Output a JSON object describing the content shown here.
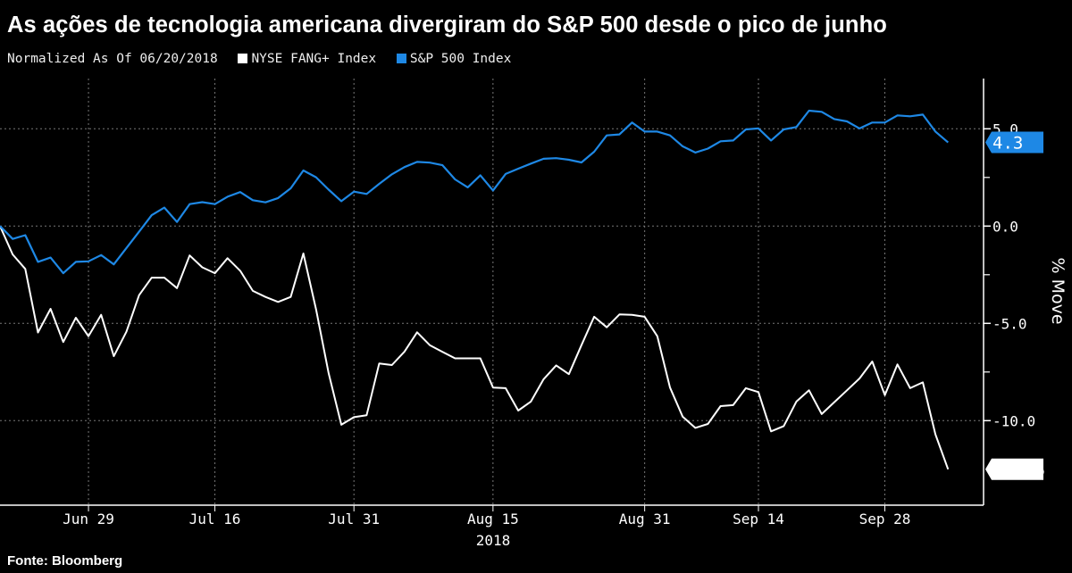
{
  "title": "As ações de tecnologia americana divergiram do S&P 500 desde o pico de junho",
  "source": "Fonte: Bloomberg",
  "chart_data": {
    "type": "line",
    "title": "As ações de tecnologia americana divergiram do S&P 500 desde o pico de junho",
    "subtitle": "Normalized As Of 06/20/2018",
    "ylabel": "% Move",
    "xlabel": "",
    "x_year_label": "2018",
    "ylim": [
      -14.4,
      7.7
    ],
    "y_ticks": [
      5.0,
      0.0,
      -5.0,
      -10.0
    ],
    "y_tick_labels": [
      "5.0",
      "0.0",
      "-5.0",
      "-10.0"
    ],
    "y_minor_ticks": [
      2.5,
      -2.5,
      -7.5
    ],
    "x_ticks": [
      {
        "date": "2018-06-29",
        "label": "Jun 29"
      },
      {
        "date": "2018-07-16",
        "label": "Jul 16"
      },
      {
        "date": "2018-07-31",
        "label": "Jul 31"
      },
      {
        "date": "2018-08-15",
        "label": "Aug 15"
      },
      {
        "date": "2018-08-31",
        "label": "Aug 31"
      },
      {
        "date": "2018-09-14",
        "label": "Sep 14"
      },
      {
        "date": "2018-09-28",
        "label": "Sep 28"
      }
    ],
    "grid": true,
    "legend_position": "top-left",
    "x": [
      "2018-06-20",
      "2018-06-21",
      "2018-06-22",
      "2018-06-25",
      "2018-06-26",
      "2018-06-27",
      "2018-06-28",
      "2018-06-29",
      "2018-07-02",
      "2018-07-03",
      "2018-07-05",
      "2018-07-06",
      "2018-07-09",
      "2018-07-10",
      "2018-07-11",
      "2018-07-12",
      "2018-07-13",
      "2018-07-16",
      "2018-07-17",
      "2018-07-18",
      "2018-07-19",
      "2018-07-20",
      "2018-07-23",
      "2018-07-24",
      "2018-07-25",
      "2018-07-26",
      "2018-07-27",
      "2018-07-30",
      "2018-07-31",
      "2018-08-01",
      "2018-08-02",
      "2018-08-03",
      "2018-08-06",
      "2018-08-07",
      "2018-08-08",
      "2018-08-09",
      "2018-08-10",
      "2018-08-13",
      "2018-08-14",
      "2018-08-15",
      "2018-08-16",
      "2018-08-17",
      "2018-08-20",
      "2018-08-21",
      "2018-08-22",
      "2018-08-23",
      "2018-08-24",
      "2018-08-27",
      "2018-08-28",
      "2018-08-29",
      "2018-08-30",
      "2018-08-31",
      "2018-09-04",
      "2018-09-05",
      "2018-09-06",
      "2018-09-07",
      "2018-09-10",
      "2018-09-11",
      "2018-09-12",
      "2018-09-13",
      "2018-09-14",
      "2018-09-17",
      "2018-09-18",
      "2018-09-19",
      "2018-09-20",
      "2018-09-21",
      "2018-09-24",
      "2018-09-25",
      "2018-09-26",
      "2018-09-27",
      "2018-09-28",
      "2018-10-01",
      "2018-10-02",
      "2018-10-03",
      "2018-10-04",
      "2018-10-05"
    ],
    "series": [
      {
        "name": "NYSE FANG+ Index",
        "color": "#ffffff",
        "last_value_label": "-12.5",
        "values": [
          0,
          -1.46,
          -2.2,
          -5.47,
          -4.25,
          -5.96,
          -4.71,
          -5.66,
          -4.56,
          -6.69,
          -5.43,
          -3.55,
          -2.65,
          -2.65,
          -3.19,
          -1.51,
          -2.12,
          -2.42,
          -1.65,
          -2.3,
          -3.33,
          -3.64,
          -3.9,
          -3.64,
          -1.41,
          -4.28,
          -7.57,
          -10.21,
          -9.82,
          -9.72,
          -7.06,
          -7.14,
          -6.45,
          -5.46,
          -6.12,
          -6.47,
          -6.8,
          -6.8,
          -6.8,
          -8.3,
          -8.33,
          -9.48,
          -9.02,
          -7.87,
          -7.16,
          -7.61,
          -6.12,
          -4.66,
          -5.2,
          -4.54,
          -4.56,
          -4.66,
          -5.66,
          -8.3,
          -9.79,
          -10.37,
          -10.17,
          -9.25,
          -9.2,
          -8.33,
          -8.53,
          -10.55,
          -10.28,
          -9.02,
          -8.44,
          -9.66,
          -9.05,
          -8.44,
          -7.83,
          -6.96,
          -8.69,
          -7.11,
          -8.33,
          -8.03,
          -10.7,
          -12.5
        ]
      },
      {
        "name": "S&P 500 Index",
        "color": "#1e88e5",
        "last_value_label": "4.3",
        "values": [
          0,
          -0.66,
          -0.47,
          -1.84,
          -1.62,
          -2.42,
          -1.84,
          -1.81,
          -1.49,
          -1.97,
          -1.13,
          -0.29,
          0.56,
          0.95,
          0.21,
          1.13,
          1.23,
          1.13,
          1.51,
          1.75,
          1.33,
          1.22,
          1.44,
          1.94,
          2.86,
          2.51,
          1.87,
          1.28,
          1.77,
          1.65,
          2.17,
          2.66,
          3.03,
          3.3,
          3.26,
          3.13,
          2.4,
          1.99,
          2.61,
          1.83,
          2.68,
          2.95,
          3.21,
          3.46,
          3.49,
          3.41,
          3.27,
          3.82,
          4.66,
          4.71,
          5.32,
          4.86,
          4.86,
          4.66,
          4.1,
          3.78,
          3.98,
          4.36,
          4.4,
          4.97,
          5.02,
          4.4,
          4.97,
          5.09,
          5.93,
          5.87,
          5.5,
          5.38,
          5.02,
          5.32,
          5.32,
          5.69,
          5.64,
          5.73,
          4.86,
          4.3
        ]
      }
    ]
  }
}
